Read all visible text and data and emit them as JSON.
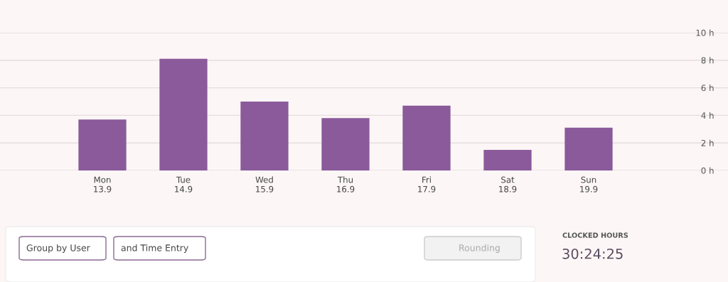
{
  "chart_data": {
    "type": "bar",
    "categories": [
      "Mon\n13.9",
      "Tue\n14.9",
      "Wed\n15.9",
      "Thu\n16.9",
      "Fri\n17.9",
      "Sat\n18.9",
      "Sun\n19.9"
    ],
    "values": [
      3.7,
      8.1,
      5.0,
      3.8,
      4.7,
      1.5,
      3.1
    ],
    "color": "#8a5a9b",
    "ylim": [
      0,
      10
    ],
    "yticks": [
      {
        "value": 0,
        "label": "0 h"
      },
      {
        "value": 2,
        "label": "2 h"
      },
      {
        "value": 4,
        "label": "4 h"
      },
      {
        "value": 6,
        "label": "6 h"
      },
      {
        "value": 8,
        "label": "8 h"
      },
      {
        "value": 10,
        "label": "10 h"
      }
    ],
    "grid": "y",
    "annotations": [
      "Group by User",
      "and Time Entry",
      "Rounding",
      "CLOCKED HOURS",
      "30:24:25"
    ]
  }
}
